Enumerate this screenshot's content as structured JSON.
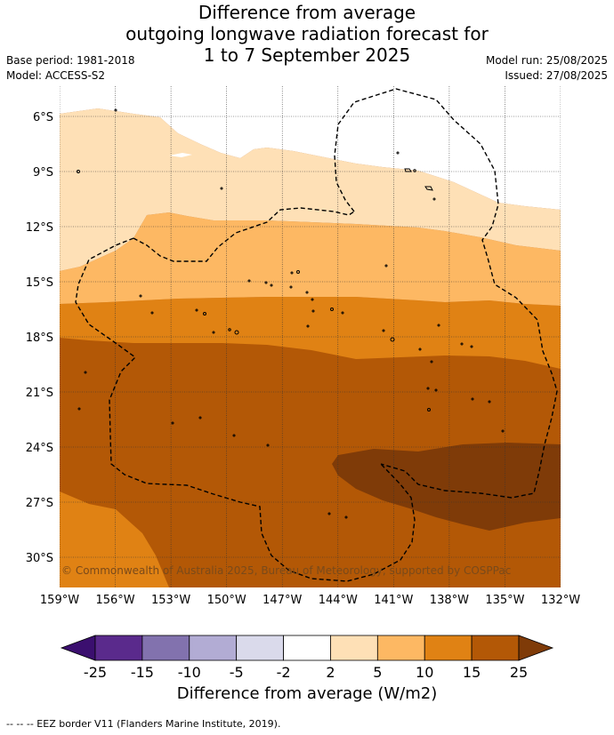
{
  "title": {
    "line1": "Difference from average",
    "line2": "outgoing longwave radiation forecast for",
    "line3": "1 to 7 September 2025"
  },
  "meta": {
    "base_period": "Base period: 1981-2018",
    "model": "Model: ACCESS-S2",
    "model_run": "Model run: 25/08/2025",
    "issued": "Issued: 27/08/2025"
  },
  "map": {
    "lat_labels": [
      "6°S",
      "9°S",
      "12°S",
      "15°S",
      "18°S",
      "21°S",
      "24°S",
      "27°S",
      "30°S"
    ],
    "lon_labels": [
      "159°W",
      "156°W",
      "153°W",
      "150°W",
      "147°W",
      "144°W",
      "141°W",
      "138°W",
      "135°W",
      "132°W"
    ],
    "copyright": "© Commonwealth of Australia 2025, Bureau of Meteorology, supported by COSPPac"
  },
  "colorbar": {
    "ticks": [
      "-25",
      "-15",
      "-10",
      "-5",
      "-2",
      "2",
      "5",
      "10",
      "15",
      "25"
    ],
    "colors": [
      "#3b0f6f",
      "#5a2a8c",
      "#8272ae",
      "#b2acd4",
      "#dadaeb",
      "#ffffff",
      "#fee0b6",
      "#fdb863",
      "#e08214",
      "#b35806",
      "#7f3b08"
    ],
    "title": "Difference from average (W/m2)"
  },
  "footer": "--  --  -- EEZ border V11 (Flanders Marine Institute, 2019)."
}
